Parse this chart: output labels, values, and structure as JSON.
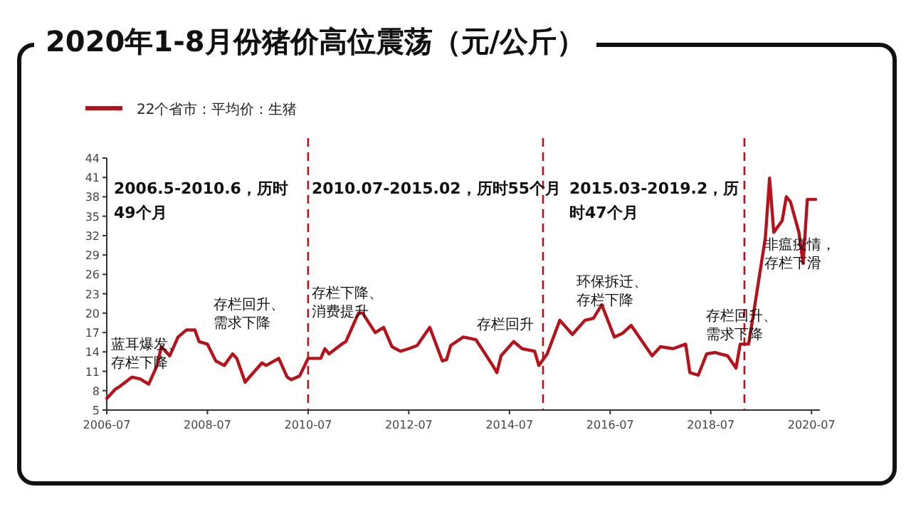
{
  "chart_data": {
    "type": "line",
    "title": "2020年1-8月份猪价高位震荡（元/公斤）",
    "x": [
      "2006-07",
      "2006-09",
      "2006-10",
      "2007-01",
      "2007-03",
      "2007-05",
      "2007-07",
      "2007-08",
      "2007-10",
      "2007-12",
      "2008-02",
      "2008-04",
      "2008-05",
      "2008-07",
      "2008-09",
      "2008-11",
      "2009-01",
      "2009-02",
      "2009-04",
      "2009-05",
      "2009-08",
      "2009-09",
      "2009-12",
      "2010-02",
      "2010-03",
      "2010-05",
      "2010-07",
      "2010-10",
      "2010-11",
      "2010-12",
      "2011-03",
      "2011-04",
      "2011-07",
      "2011-08",
      "2011-11",
      "2012-01",
      "2012-03",
      "2012-05",
      "2012-07",
      "2012-09",
      "2012-12",
      "2013-03",
      "2013-04",
      "2013-05",
      "2013-08",
      "2013-11",
      "2014-03",
      "2014-04",
      "2014-05",
      "2014-08",
      "2014-10",
      "2015-01",
      "2015-02",
      "2015-04",
      "2015-07",
      "2015-10",
      "2016-01",
      "2016-03",
      "2016-05",
      "2016-08",
      "2016-10",
      "2016-12",
      "2017-05",
      "2017-07",
      "2017-10",
      "2018-01",
      "2018-02",
      "2018-04",
      "2018-06",
      "2018-08",
      "2018-11",
      "2019-01",
      "2019-02",
      "2019-04",
      "2019-05",
      "2019-08",
      "2019-09",
      "2019-10",
      "2019-12",
      "2020-01",
      "2020-02",
      "2020-04",
      "2020-05",
      "2020-06",
      "2020-08"
    ],
    "series": [
      {
        "name": "22个省市：平均价：生猪",
        "color": "#b5121b",
        "values": [
          6.8,
          8.2,
          8.6,
          10.1,
          9.8,
          9.0,
          11.9,
          14.8,
          13.4,
          16.3,
          17.4,
          17.4,
          15.6,
          15.2,
          12.6,
          11.9,
          13.7,
          13.0,
          9.3,
          10.1,
          12.3,
          11.9,
          13.0,
          10.1,
          9.7,
          10.3,
          13.0,
          13.0,
          14.5,
          13.7,
          15.2,
          15.6,
          20.0,
          20.0,
          17.0,
          17.8,
          14.8,
          14.1,
          14.5,
          15.0,
          17.8,
          12.6,
          12.8,
          15.0,
          16.3,
          15.9,
          11.9,
          10.8,
          13.4,
          15.6,
          14.5,
          14.1,
          11.9,
          13.7,
          18.9,
          16.7,
          18.9,
          19.2,
          21.3,
          16.3,
          16.9,
          18.1,
          13.4,
          14.8,
          14.5,
          15.2,
          10.8,
          10.4,
          13.7,
          13.9,
          13.4,
          11.5,
          15.2,
          15.2,
          19.2,
          31.7,
          40.9,
          32.5,
          34.3,
          38.0,
          37.2,
          32.5,
          27.7,
          37.6,
          37.6
        ]
      }
    ],
    "xlim": [
      "2006-07",
      "2020-09"
    ],
    "xticks": [
      "2006-07",
      "2008-07",
      "2010-07",
      "2012-07",
      "2014-07",
      "2016-07",
      "2018-07",
      "2020-07"
    ],
    "ylim": [
      5,
      44
    ],
    "yticks": [
      5,
      8,
      11,
      14,
      17,
      20,
      23,
      26,
      29,
      32,
      35,
      38,
      41,
      44
    ],
    "legend": "top left",
    "grid": false,
    "ref_lines": [
      {
        "axis": "x",
        "value": "2010-07",
        "color": "#b5121b",
        "line_style": "dashed"
      },
      {
        "axis": "x",
        "value": "2015-03",
        "color": "#b5121b",
        "line_style": "dashed"
      },
      {
        "axis": "x",
        "value": "2019-03",
        "color": "#b5121b",
        "line_style": "dashed"
      }
    ],
    "annotations": [
      "2006.5-2010.6，历时49个月",
      "2010.07-2015.02，历时55个月",
      "2015.03-2019.2，历时47个月",
      "蓝耳爆发、存栏下降",
      "存栏回升、需求下降",
      "存栏下降、消费提升",
      "存栏回升",
      "环保拆迁、存栏下降",
      "存栏回升、需求下降",
      "非瘟疫情，存栏下滑"
    ]
  }
}
